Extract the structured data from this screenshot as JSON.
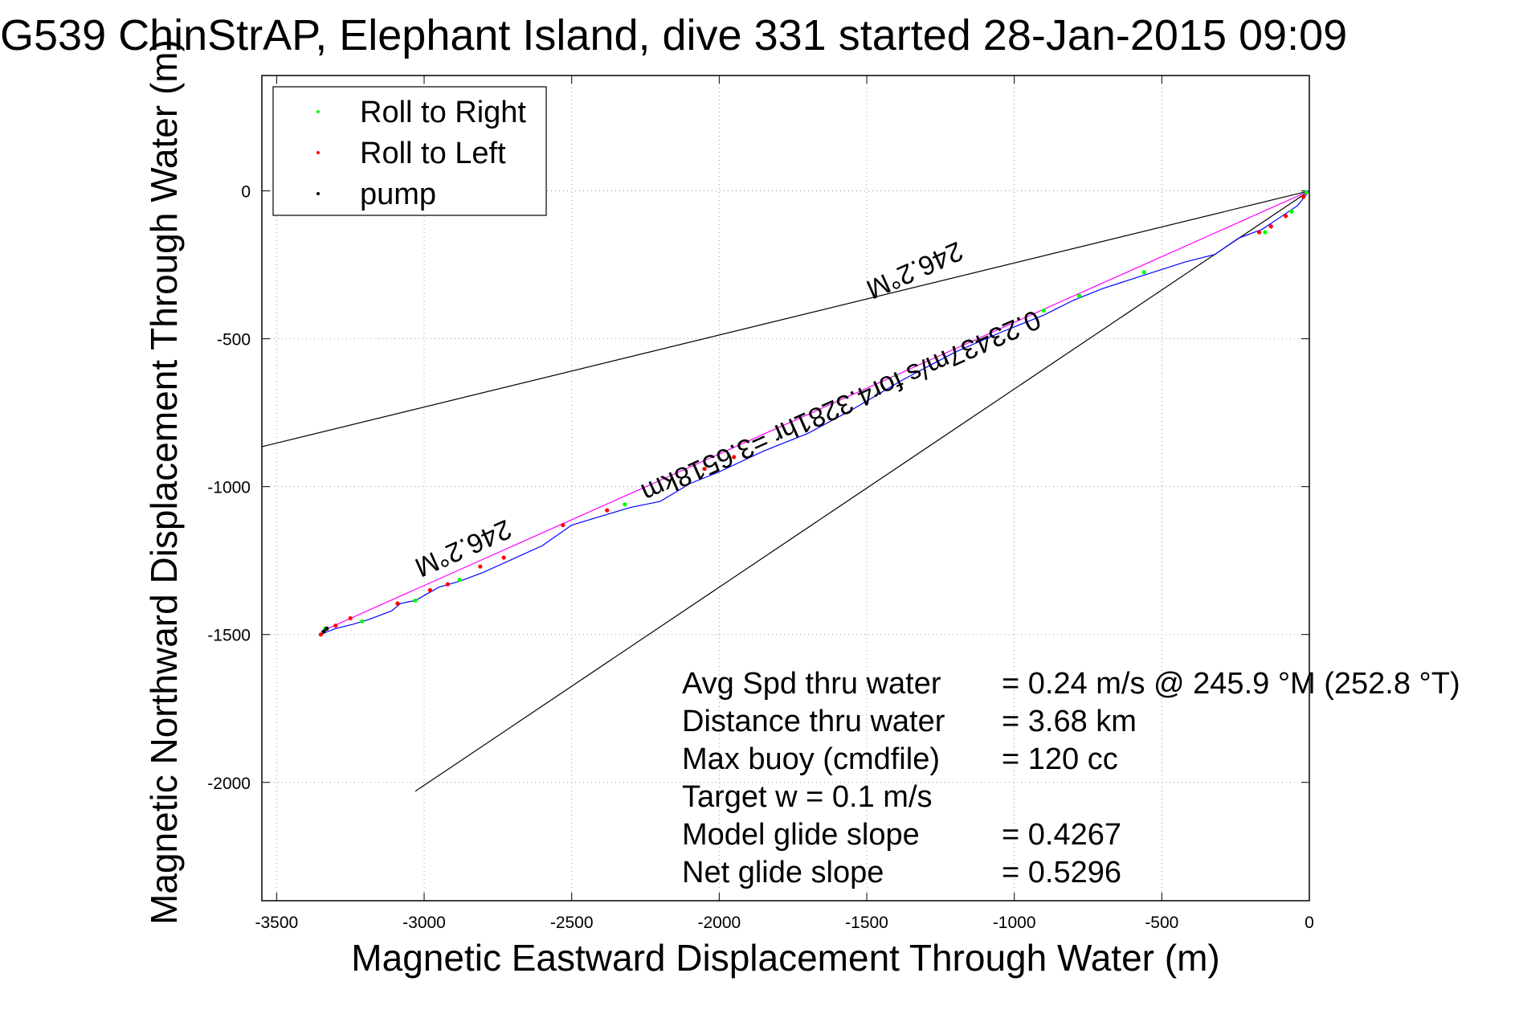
{
  "chart_data": {
    "type": "line",
    "title": "G539 ChinStrAP, Elephant Island, dive 331 started 28-Jan-2015 09:09",
    "xlabel": "Magnetic Eastward Displacement Through Water (m)",
    "ylabel": "Magnetic Northward Displacement Through Water (m)",
    "xlim": [
      -3550,
      0
    ],
    "ylim": [
      -2400,
      390
    ],
    "xticks": [
      -3500,
      -3000,
      -2500,
      -2000,
      -1500,
      -1000,
      -500,
      0
    ],
    "yticks": [
      0,
      -500,
      -1000,
      -1500,
      -2000
    ],
    "grid": true,
    "legend_position": "top-left",
    "legend": [
      {
        "label": "Roll to Right",
        "color": "#00ff00"
      },
      {
        "label": "Roll to Left",
        "color": "#ff0000"
      },
      {
        "label": "pump",
        "color": "#000000"
      }
    ],
    "track": {
      "color": "#0000ff",
      "x": [
        0,
        -40,
        -100,
        -160,
        -240,
        -320,
        -420,
        -560,
        -700,
        -800,
        -900,
        -1050,
        -1200,
        -1380,
        -1550,
        -1700,
        -1850,
        -2000,
        -2100,
        -2200,
        -2300,
        -2400,
        -2500,
        -2600,
        -2700,
        -2800,
        -2880,
        -2950,
        -3030,
        -3080,
        -3110,
        -3190,
        -3240,
        -3300,
        -3340,
        -3355
      ],
      "y": [
        0,
        -50,
        -90,
        -130,
        -160,
        -215,
        -240,
        -285,
        -330,
        -370,
        -420,
        -480,
        -545,
        -640,
        -740,
        -820,
        -880,
        -950,
        -990,
        -1050,
        -1070,
        -1100,
        -1130,
        -1200,
        -1245,
        -1290,
        -1320,
        -1340,
        -1385,
        -1395,
        -1420,
        -1450,
        -1465,
        -1480,
        -1495,
        -1505
      ]
    },
    "heading_line": {
      "color": "#ff00ff",
      "x": [
        0,
        -3350
      ],
      "y": [
        0,
        -1490
      ]
    },
    "fan_lines": [
      {
        "color": "#000000",
        "x": [
          0,
          -3550
        ],
        "y": [
          0,
          -865
        ]
      },
      {
        "color": "#000000",
        "x": [
          0,
          -3030
        ],
        "y": [
          0,
          -2030
        ]
      }
    ],
    "roll_right_points": {
      "color": "#00ff00",
      "x": [
        -10,
        -60,
        -150,
        -560,
        -780,
        -900,
        -1400,
        -2320,
        -2880,
        -3030,
        -3210,
        -3335
      ],
      "y": [
        -5,
        -70,
        -140,
        -275,
        -355,
        -405,
        -625,
        -1060,
        -1315,
        -1385,
        -1455,
        -1480
      ]
    },
    "roll_left_points": {
      "color": "#ff0000",
      "x": [
        -20,
        -80,
        -130,
        -170,
        -1950,
        -2050,
        -2380,
        -2530,
        -2730,
        -2810,
        -2920,
        -2980,
        -3090,
        -3250,
        -3300,
        -3350
      ],
      "y": [
        -20,
        -85,
        -120,
        -140,
        -900,
        -940,
        -1080,
        -1130,
        -1240,
        -1270,
        -1330,
        -1350,
        -1395,
        -1445,
        -1470,
        -1500
      ]
    },
    "pump_points": {
      "color": "#000000",
      "x": [
        -3330,
        -3340
      ],
      "y": [
        -1480,
        -1490
      ]
    },
    "rotated_labels": [
      {
        "text": "246.2°M",
        "x": -1350,
        "y": -240
      },
      {
        "text": "0.23437m/s for4.3281hr =3.6518km",
        "x": -1600,
        "y": -700
      },
      {
        "text": "246.2°M",
        "x": -2880,
        "y": -1180
      }
    ],
    "annotation_lines": [
      {
        "label": "Avg Spd thru water",
        "value": "=  0.24 m/s @ 245.9 °M (252.8 °T)"
      },
      {
        "label": "Distance thru water",
        "value": "=  3.68 km"
      },
      {
        "label": "Max buoy (cmdfile)",
        "value": "= 120 cc"
      },
      {
        "label": "Target w    = 0.1 m/s",
        "value": ""
      },
      {
        "label": "Model glide slope",
        "value": "= 0.4267"
      },
      {
        "label": "Net glide slope",
        "value": "= 0.5296"
      }
    ]
  }
}
